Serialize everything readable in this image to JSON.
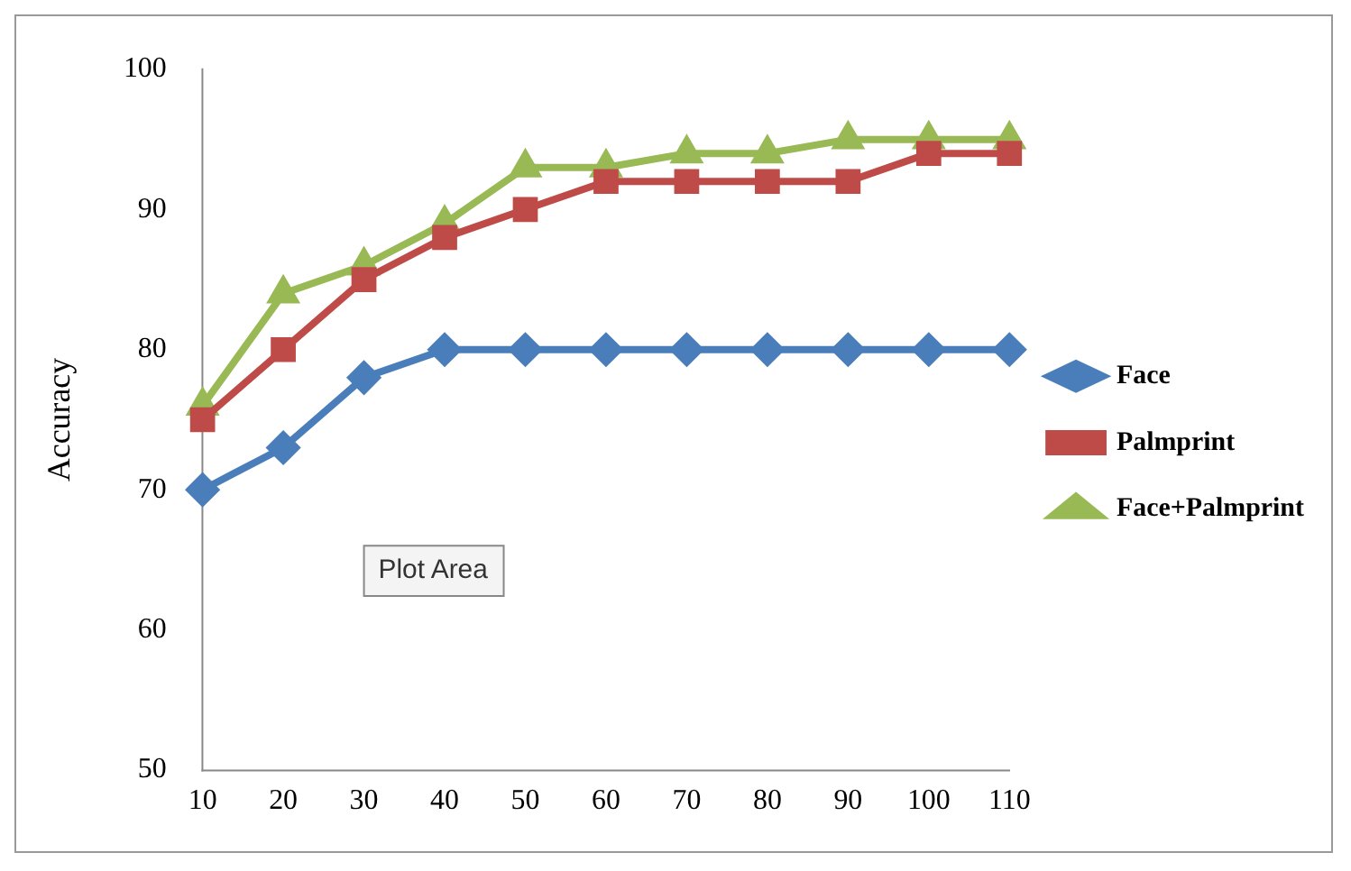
{
  "chart_data": {
    "type": "line",
    "ylabel": "Accuracy",
    "categories": [
      "10",
      "20",
      "30",
      "40",
      "50",
      "60",
      "70",
      "80",
      "90",
      "100",
      "110"
    ],
    "series": [
      {
        "name": "Face",
        "color": "#4a7ebb",
        "marker": "diamond",
        "values": [
          70,
          73,
          78,
          80,
          80,
          80,
          80,
          80,
          80,
          80,
          80
        ]
      },
      {
        "name": "Palmprint",
        "color": "#be4b48",
        "marker": "square",
        "values": [
          75,
          80,
          85,
          88,
          90,
          92,
          92,
          92,
          92,
          94,
          94
        ]
      },
      {
        "name": "Face+Palmprint",
        "color": "#98b954",
        "marker": "triangle",
        "values": [
          76,
          84,
          86,
          89,
          93,
          93,
          94,
          94,
          95,
          95,
          95
        ]
      }
    ],
    "ylim": [
      50,
      100
    ],
    "yticks": [
      50,
      60,
      70,
      80,
      90,
      100
    ],
    "grid": false,
    "legend": "right",
    "annotations": [
      "Plot Area"
    ]
  }
}
